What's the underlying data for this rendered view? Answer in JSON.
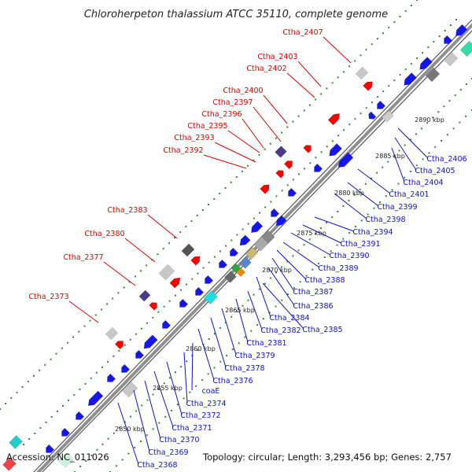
{
  "title": "Chloroherpeton thalassium ATCC 35110, complete genome",
  "footer": {
    "accession": "Accession: NC_011026",
    "summary": "Topology: circular; Length: 3,293,456 bp; Genes: 2,757"
  },
  "colors": {
    "backbone": "#7a7a7a",
    "forward_label": "#dd0000",
    "reverse_label": "#1010cc",
    "forward_gene": "#ff0000",
    "reverse_gene": "#1515ee",
    "dot_track": "#2e8b2e"
  },
  "ticks": [
    "2850 kbp",
    "2855 kbp",
    "2860 kbp",
    "2865 kbp",
    "2870 kbp",
    "2875 kbp",
    "2880 kbp",
    "2885 kbp",
    "2890 kbp"
  ],
  "forward_labels": [
    "Ctha_2407",
    "Ctha_2403",
    "Ctha_2402",
    "Ctha_2400",
    "Ctha_2397",
    "Ctha_2396",
    "Ctha_2395",
    "Ctha_2393",
    "Ctha_2392",
    "Ctha_2383",
    "Ctha_2380",
    "Ctha_2377",
    "Ctha_2373"
  ],
  "reverse_labels": [
    "Ctha_2406",
    "Ctha_2405",
    "Ctha_2404",
    "Ctha_2401",
    "Ctha_2399",
    "Ctha_2398",
    "Ctha_2394",
    "Ctha_2391",
    "Ctha_2390",
    "Ctha_2389",
    "Ctha_2388",
    "Ctha_2387",
    "Ctha_2386",
    "Ctha_2384",
    "Ctha_2385",
    "Ctha_2382",
    "Ctha_2381",
    "Ctha_2379",
    "Ctha_2378",
    "Ctha_2376",
    "coaE",
    "Ctha_2374",
    "Ctha_2372",
    "Ctha_2371",
    "Ctha_2370",
    "Ctha_2369",
    "Ctha_2368"
  ]
}
